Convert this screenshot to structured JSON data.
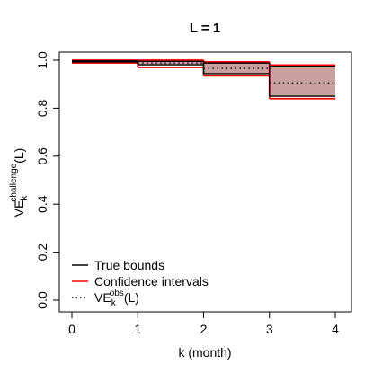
{
  "chart_data": {
    "type": "line",
    "title": "L = 1",
    "xlabel": "k (month)",
    "ylabel": {
      "base": "VE",
      "sub": "k",
      "sup": "challenge",
      "suffix": "(L)"
    },
    "xlim": [
      0,
      4
    ],
    "ylim": [
      0,
      1
    ],
    "xticks": [
      "0",
      "1",
      "2",
      "3",
      "4"
    ],
    "yticks": [
      "0.0",
      "0.2",
      "0.4",
      "0.6",
      "0.8",
      "1.0"
    ],
    "grid": false,
    "legend_position": "bottom-left",
    "intervals": [
      {
        "k_from": 0,
        "k_to": 1,
        "true_lower": 0.993,
        "true_upper": 0.997,
        "ci_lower": 0.989,
        "ci_upper": 1.0,
        "observed": 0.995
      },
      {
        "k_from": 1,
        "k_to": 2,
        "true_lower": 0.981,
        "true_upper": 0.995,
        "ci_lower": 0.97,
        "ci_upper": 1.0,
        "observed": 0.988
      },
      {
        "k_from": 2,
        "k_to": 3,
        "true_lower": 0.944,
        "true_upper": 0.988,
        "ci_lower": 0.935,
        "ci_upper": 0.993,
        "observed": 0.966
      },
      {
        "k_from": 3,
        "k_to": 4,
        "true_lower": 0.85,
        "true_upper": 0.975,
        "ci_lower": 0.84,
        "ci_upper": 0.98,
        "observed": 0.906
      }
    ],
    "legend": [
      {
        "key": "true",
        "label": "True bounds",
        "style": "solid",
        "color": "#000000"
      },
      {
        "key": "ci",
        "label": "Confidence intervals",
        "style": "solid",
        "color": "#ff0000"
      },
      {
        "key": "obs",
        "label": {
          "base": "VE",
          "sub": "k",
          "sup": "obs",
          "suffix": "(L)"
        },
        "style": "dotted",
        "color": "#000000"
      }
    ],
    "colors": {
      "true_bounds": "#000000",
      "confidence": "#ff0000",
      "observed": "#000000",
      "band_fill": "#c9a0a0"
    }
  }
}
